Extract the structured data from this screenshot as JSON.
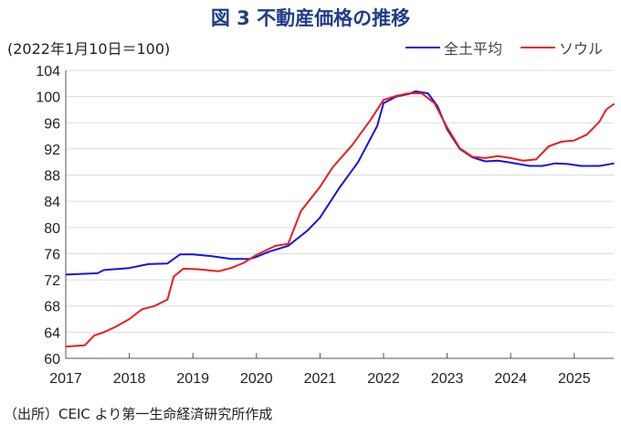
{
  "chart_data": {
    "type": "line",
    "title": "図 3  不動産価格の推移",
    "ylabel": "(2022年1月10日＝100)",
    "xlabel": "",
    "source": "（出所）CEIC より第一生命経済研究所作成",
    "ylim": [
      60,
      104
    ],
    "xlim": [
      2017,
      2025.63
    ],
    "yticks": [
      60,
      64,
      68,
      72,
      76,
      80,
      84,
      88,
      92,
      96,
      100,
      104
    ],
    "xticks": [
      "2017",
      "2018",
      "2019",
      "2020",
      "2021",
      "2022",
      "2023",
      "2024",
      "2025"
    ],
    "grid": true,
    "legend_position": "top-right",
    "series": [
      {
        "name": "全土平均",
        "color": "#1515e0",
        "points": [
          [
            2017.0,
            72.8
          ],
          [
            2017.5,
            73.0
          ],
          [
            2017.6,
            73.5
          ],
          [
            2018.0,
            73.8
          ],
          [
            2018.3,
            74.4
          ],
          [
            2018.6,
            74.5
          ],
          [
            2018.8,
            75.9
          ],
          [
            2019.0,
            75.9
          ],
          [
            2019.3,
            75.6
          ],
          [
            2019.6,
            75.2
          ],
          [
            2019.9,
            75.2
          ],
          [
            2020.0,
            75.5
          ],
          [
            2020.2,
            76.3
          ],
          [
            2020.5,
            77.2
          ],
          [
            2020.8,
            79.5
          ],
          [
            2021.0,
            81.5
          ],
          [
            2021.3,
            86.0
          ],
          [
            2021.6,
            90.0
          ],
          [
            2021.9,
            95.5
          ],
          [
            2022.0,
            99.0
          ],
          [
            2022.2,
            100.0
          ],
          [
            2022.4,
            100.4
          ],
          [
            2022.5,
            100.8
          ],
          [
            2022.7,
            100.5
          ],
          [
            2022.85,
            98.5
          ],
          [
            2023.0,
            95.0
          ],
          [
            2023.2,
            92.0
          ],
          [
            2023.4,
            90.7
          ],
          [
            2023.6,
            90.1
          ],
          [
            2023.8,
            90.2
          ],
          [
            2024.0,
            89.9
          ],
          [
            2024.3,
            89.4
          ],
          [
            2024.5,
            89.4
          ],
          [
            2024.7,
            89.8
          ],
          [
            2024.9,
            89.7
          ],
          [
            2025.1,
            89.4
          ],
          [
            2025.4,
            89.4
          ],
          [
            2025.63,
            89.8
          ]
        ]
      },
      {
        "name": "ソウル",
        "color": "#e81e1e",
        "points": [
          [
            2017.0,
            61.8
          ],
          [
            2017.3,
            62.0
          ],
          [
            2017.45,
            63.5
          ],
          [
            2017.6,
            64.0
          ],
          [
            2017.8,
            64.9
          ],
          [
            2018.0,
            66.0
          ],
          [
            2018.2,
            67.5
          ],
          [
            2018.4,
            68.0
          ],
          [
            2018.6,
            69.0
          ],
          [
            2018.7,
            72.5
          ],
          [
            2018.85,
            73.7
          ],
          [
            2019.1,
            73.6
          ],
          [
            2019.4,
            73.3
          ],
          [
            2019.6,
            73.8
          ],
          [
            2019.8,
            74.6
          ],
          [
            2020.0,
            75.8
          ],
          [
            2020.3,
            77.2
          ],
          [
            2020.5,
            77.5
          ],
          [
            2020.7,
            82.5
          ],
          [
            2021.0,
            86.2
          ],
          [
            2021.2,
            89.2
          ],
          [
            2021.5,
            92.5
          ],
          [
            2021.8,
            96.5
          ],
          [
            2022.0,
            99.5
          ],
          [
            2022.2,
            100.1
          ],
          [
            2022.4,
            100.5
          ],
          [
            2022.6,
            100.5
          ],
          [
            2022.8,
            99.0
          ],
          [
            2023.0,
            95.3
          ],
          [
            2023.2,
            92.1
          ],
          [
            2023.4,
            90.8
          ],
          [
            2023.6,
            90.6
          ],
          [
            2023.8,
            90.9
          ],
          [
            2024.0,
            90.6
          ],
          [
            2024.2,
            90.2
          ],
          [
            2024.4,
            90.4
          ],
          [
            2024.6,
            92.4
          ],
          [
            2024.8,
            93.1
          ],
          [
            2025.0,
            93.3
          ],
          [
            2025.2,
            94.2
          ],
          [
            2025.4,
            96.2
          ],
          [
            2025.5,
            98.0
          ],
          [
            2025.63,
            98.9
          ]
        ]
      }
    ]
  }
}
